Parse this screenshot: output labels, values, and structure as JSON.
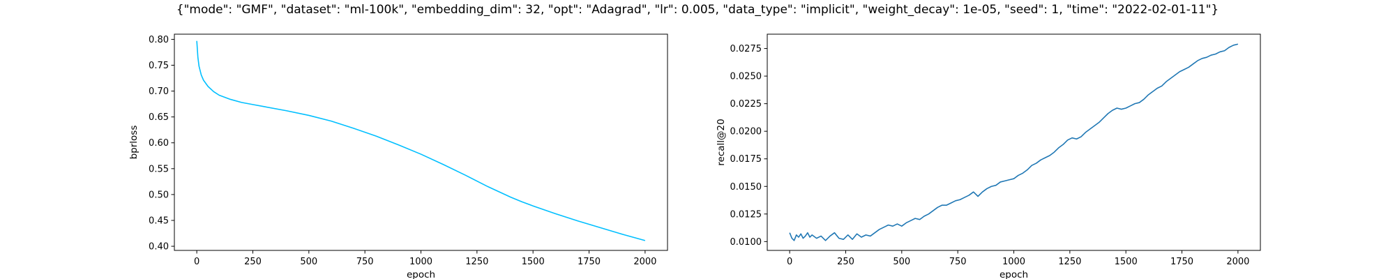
{
  "figure_title": "{\"mode\": \"GMF\", \"dataset\": \"ml-100k\", \"embedding_dim\": 32, \"opt\": \"Adagrad\", \"lr\": 0.005, \"data_type\": \"implicit\", \"weight_decay\": 1e-05, \"seed\": 1, \"time\": \"2022-02-01-11\"}",
  "chart_data": [
    {
      "type": "line",
      "xlabel": "epoch",
      "ylabel": "bprloss",
      "xlim": [
        -100,
        2100
      ],
      "ylim": [
        0.392,
        0.81
      ],
      "xticks": [
        0,
        250,
        500,
        750,
        1000,
        1250,
        1500,
        1750,
        2000
      ],
      "yticks": [
        0.4,
        0.45,
        0.5,
        0.55,
        0.6,
        0.65,
        0.7,
        0.75,
        0.8
      ],
      "ytick_decimals": 2,
      "grid": false,
      "series": [
        {
          "color": "#00bfff",
          "x": [
            0,
            5,
            10,
            20,
            30,
            50,
            75,
            100,
            150,
            200,
            250,
            300,
            400,
            500,
            600,
            700,
            800,
            900,
            1000,
            1100,
            1200,
            1300,
            1400,
            1450,
            1500,
            1600,
            1700,
            1800,
            1900,
            2000
          ],
          "y": [
            0.797,
            0.765,
            0.748,
            0.731,
            0.721,
            0.709,
            0.699,
            0.692,
            0.684,
            0.678,
            0.674,
            0.67,
            0.662,
            0.653,
            0.642,
            0.628,
            0.613,
            0.596,
            0.578,
            0.558,
            0.537,
            0.515,
            0.495,
            0.486,
            0.478,
            0.463,
            0.449,
            0.436,
            0.423,
            0.411
          ]
        }
      ]
    },
    {
      "type": "line",
      "xlabel": "epoch",
      "ylabel": "recall@20",
      "xlim": [
        -100,
        2100
      ],
      "ylim": [
        0.0092,
        0.0288
      ],
      "xticks": [
        0,
        250,
        500,
        750,
        1000,
        1250,
        1500,
        1750,
        2000
      ],
      "yticks": [
        0.01,
        0.0125,
        0.015,
        0.0175,
        0.02,
        0.0225,
        0.025,
        0.0275
      ],
      "ytick_decimals": 4,
      "grid": false,
      "series": [
        {
          "color": "#1f77b4",
          "x": [
            0,
            10,
            20,
            30,
            40,
            50,
            60,
            70,
            80,
            90,
            100,
            120,
            140,
            160,
            180,
            200,
            220,
            240,
            260,
            280,
            300,
            320,
            340,
            360,
            380,
            400,
            420,
            440,
            460,
            480,
            500,
            520,
            540,
            560,
            580,
            600,
            620,
            640,
            660,
            680,
            700,
            720,
            740,
            760,
            780,
            800,
            820,
            840,
            860,
            880,
            900,
            920,
            940,
            960,
            980,
            1000,
            1020,
            1040,
            1060,
            1080,
            1100,
            1120,
            1140,
            1160,
            1180,
            1200,
            1220,
            1240,
            1260,
            1280,
            1300,
            1320,
            1340,
            1360,
            1380,
            1400,
            1420,
            1440,
            1460,
            1480,
            1500,
            1520,
            1540,
            1560,
            1580,
            1600,
            1620,
            1640,
            1660,
            1680,
            1700,
            1720,
            1740,
            1760,
            1780,
            1800,
            1820,
            1840,
            1860,
            1880,
            1900,
            1920,
            1940,
            1960,
            1980,
            2000
          ],
          "y": [
            0.0108,
            0.0103,
            0.0101,
            0.0106,
            0.0104,
            0.0107,
            0.0103,
            0.0105,
            0.0108,
            0.0104,
            0.0106,
            0.0103,
            0.0105,
            0.0101,
            0.0105,
            0.0108,
            0.0103,
            0.0102,
            0.0106,
            0.0102,
            0.0107,
            0.0104,
            0.0106,
            0.0105,
            0.0108,
            0.0111,
            0.0113,
            0.0115,
            0.0114,
            0.0116,
            0.0114,
            0.0117,
            0.0119,
            0.0121,
            0.012,
            0.0123,
            0.0125,
            0.0128,
            0.0131,
            0.0133,
            0.0133,
            0.0135,
            0.0137,
            0.0138,
            0.014,
            0.0142,
            0.0145,
            0.0141,
            0.0145,
            0.0148,
            0.015,
            0.0151,
            0.0154,
            0.0155,
            0.0156,
            0.0157,
            0.016,
            0.0162,
            0.0165,
            0.0169,
            0.0171,
            0.0174,
            0.0176,
            0.0178,
            0.0181,
            0.0185,
            0.0188,
            0.0192,
            0.0194,
            0.0193,
            0.0195,
            0.0199,
            0.0202,
            0.0205,
            0.0208,
            0.0212,
            0.0216,
            0.0219,
            0.0221,
            0.022,
            0.0221,
            0.0223,
            0.0225,
            0.0226,
            0.0229,
            0.0233,
            0.0236,
            0.0239,
            0.0241,
            0.0245,
            0.0248,
            0.0251,
            0.0254,
            0.0256,
            0.0258,
            0.0261,
            0.0264,
            0.0266,
            0.0267,
            0.0269,
            0.027,
            0.0272,
            0.0273,
            0.0276,
            0.0278,
            0.0279
          ]
        }
      ]
    }
  ]
}
